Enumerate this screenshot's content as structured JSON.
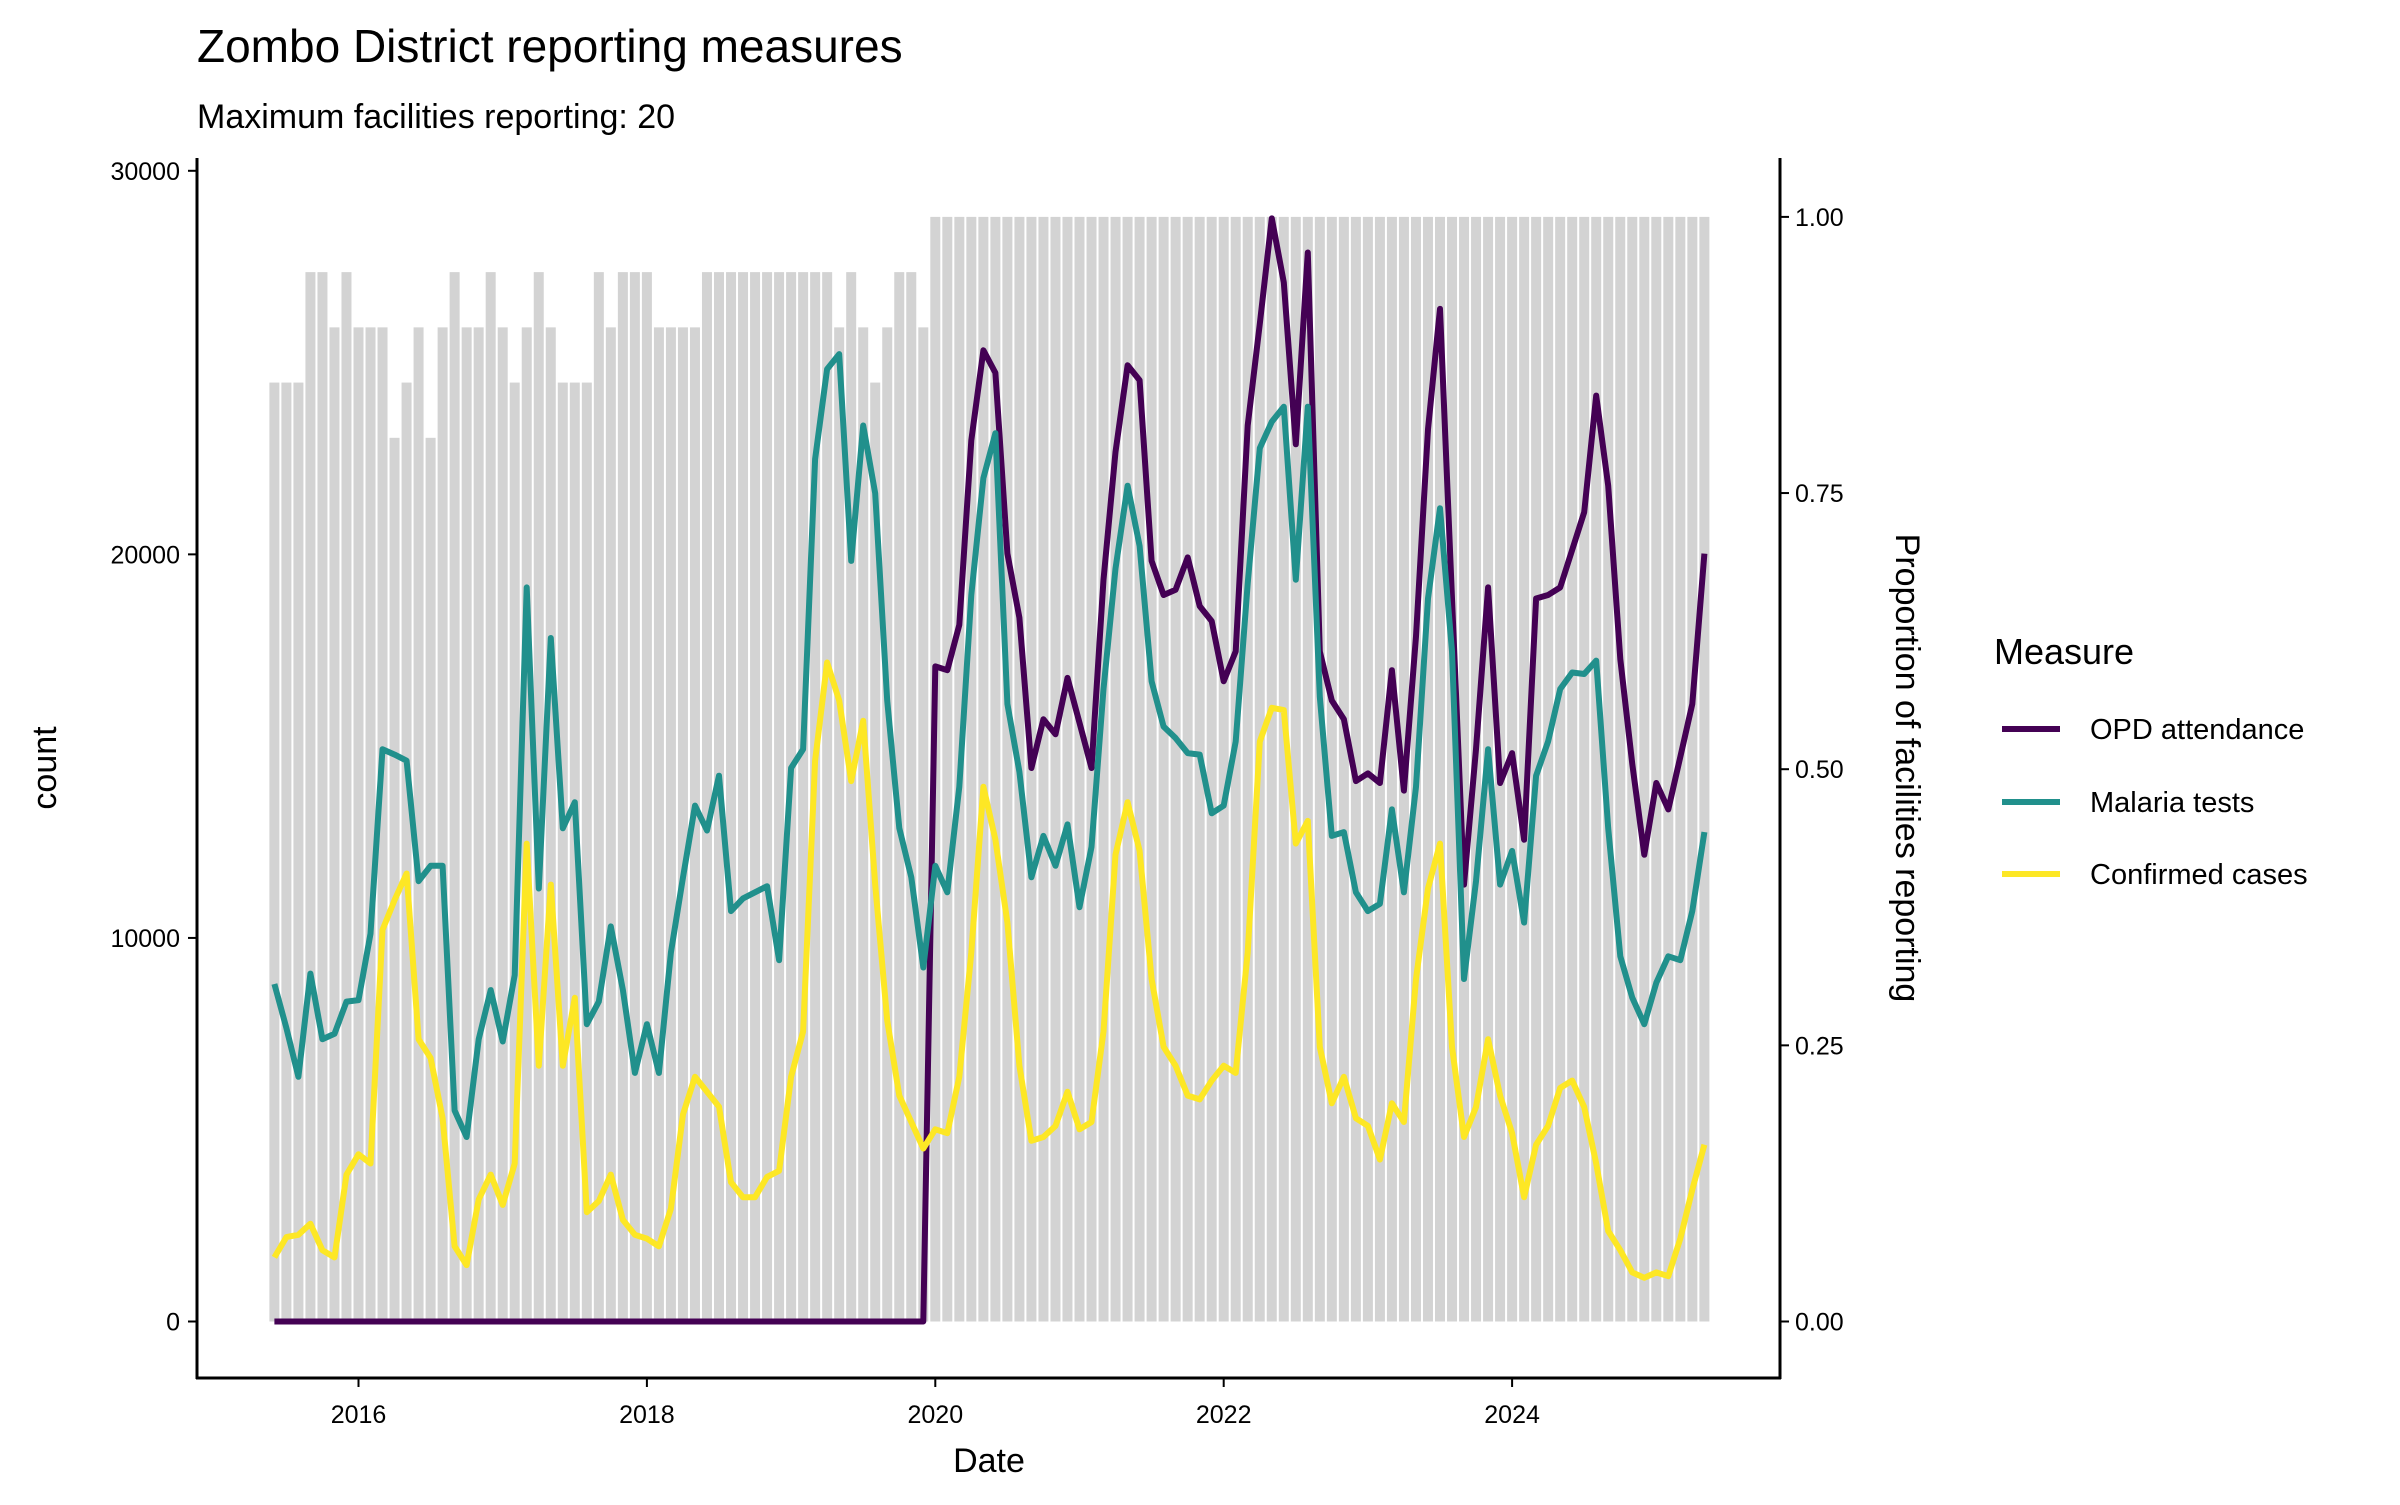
{
  "chart_data": {
    "type": "bar+line",
    "title": "Zombo District reporting measures",
    "subtitle": "Maximum facilities reporting: 20",
    "xlabel": "Date",
    "ylabel": "count",
    "ylabel_right": "Proportion of facilities reporting",
    "x_ticks": [
      "2016",
      "2018",
      "2020",
      "2022",
      "2024"
    ],
    "y_ticks": [
      "0",
      "10000",
      "20000",
      "30000"
    ],
    "y_right_ticks": [
      "0.00",
      "0.25",
      "0.50",
      "0.75",
      "1.00"
    ],
    "ylim": [
      0,
      30000
    ],
    "ylim_right": [
      0,
      1
    ],
    "grid": false,
    "legend": {
      "title": "Measure",
      "position": "right"
    },
    "dates": [
      "2015-06",
      "2015-07",
      "2015-08",
      "2015-09",
      "2015-10",
      "2015-11",
      "2015-12",
      "2016-01",
      "2016-02",
      "2016-03",
      "2016-04",
      "2016-05",
      "2016-06",
      "2016-07",
      "2016-08",
      "2016-09",
      "2016-10",
      "2016-11",
      "2016-12",
      "2017-01",
      "2017-02",
      "2017-03",
      "2017-04",
      "2017-05",
      "2017-06",
      "2017-07",
      "2017-08",
      "2017-09",
      "2017-10",
      "2017-11",
      "2017-12",
      "2018-01",
      "2018-02",
      "2018-03",
      "2018-04",
      "2018-05",
      "2018-06",
      "2018-07",
      "2018-08",
      "2018-09",
      "2018-10",
      "2018-11",
      "2018-12",
      "2019-01",
      "2019-02",
      "2019-03",
      "2019-04",
      "2019-05",
      "2019-06",
      "2019-07",
      "2019-08",
      "2019-09",
      "2019-10",
      "2019-11",
      "2019-12",
      "2020-01",
      "2020-02",
      "2020-03",
      "2020-04",
      "2020-05",
      "2020-06",
      "2020-07",
      "2020-08",
      "2020-09",
      "2020-10",
      "2020-11",
      "2020-12",
      "2021-01",
      "2021-02",
      "2021-03",
      "2021-04",
      "2021-05",
      "2021-06",
      "2021-07",
      "2021-08",
      "2021-09",
      "2021-10",
      "2021-11",
      "2021-12",
      "2022-01",
      "2022-02",
      "2022-03",
      "2022-04",
      "2022-05",
      "2022-06",
      "2022-07",
      "2022-08",
      "2022-09",
      "2022-10",
      "2022-11",
      "2022-12",
      "2023-01",
      "2023-02",
      "2023-03",
      "2023-04",
      "2023-05",
      "2023-06",
      "2023-07",
      "2023-08",
      "2023-09",
      "2023-10",
      "2023-11",
      "2023-12",
      "2024-01",
      "2024-02",
      "2024-03",
      "2024-04",
      "2024-05",
      "2024-06",
      "2024-07",
      "2024-08",
      "2024-09",
      "2024-10",
      "2024-11",
      "2024-12",
      "2025-01",
      "2025-02",
      "2025-03",
      "2025-04",
      "2025-05"
    ],
    "reporting_proportion": [
      0.85,
      0.85,
      0.85,
      0.95,
      0.95,
      0.9,
      0.95,
      0.9,
      0.9,
      0.9,
      0.8,
      0.85,
      0.9,
      0.8,
      0.9,
      0.95,
      0.9,
      0.9,
      0.95,
      0.9,
      0.85,
      0.9,
      0.95,
      0.9,
      0.85,
      0.85,
      0.85,
      0.95,
      0.9,
      0.95,
      0.95,
      0.95,
      0.9,
      0.9,
      0.9,
      0.9,
      0.95,
      0.95,
      0.95,
      0.95,
      0.95,
      0.95,
      0.95,
      0.95,
      0.95,
      0.95,
      0.95,
      0.9,
      0.95,
      0.9,
      0.85,
      0.9,
      0.95,
      0.95,
      0.9,
      1,
      1,
      1,
      1,
      1,
      1,
      1,
      1,
      1,
      1,
      1,
      1,
      1,
      1,
      1,
      1,
      1,
      1,
      1,
      1,
      1,
      1,
      1,
      1,
      1,
      1,
      1,
      1,
      1,
      1,
      1,
      1,
      1,
      1,
      1,
      1,
      1,
      1,
      1,
      1,
      1,
      1,
      1,
      1,
      1,
      1,
      1,
      1,
      1,
      1,
      1,
      1,
      1,
      1,
      1,
      1,
      1,
      1,
      1,
      1,
      1,
      1,
      1,
      1,
      1
    ],
    "bar_color": "#D3D3D3",
    "series": [
      {
        "name": "OPD attendance",
        "color": "#440154",
        "values": [
          0,
          0,
          0,
          0,
          0,
          0,
          0,
          0,
          0,
          0,
          0,
          0,
          0,
          0,
          0,
          0,
          0,
          0,
          0,
          0,
          0,
          0,
          0,
          0,
          0,
          0,
          0,
          0,
          0,
          0,
          0,
          0,
          0,
          0,
          0,
          0,
          0,
          0,
          0,
          0,
          0,
          0,
          0,
          0,
          0,
          0,
          0,
          0,
          0,
          0,
          0,
          0,
          0,
          0,
          0,
          17080,
          16980,
          18160,
          22970,
          25320,
          24730,
          20020,
          18350,
          14430,
          15700,
          15310,
          16780,
          15610,
          14430,
          19340,
          22670,
          24930,
          24540,
          19830,
          18940,
          19080,
          19920,
          18650,
          18260,
          16690,
          17470,
          23360,
          26010,
          28760,
          27090,
          22870,
          27870,
          17470,
          16190,
          15700,
          14090,
          14290,
          14040,
          16980,
          13840,
          17860,
          23260,
          26400,
          18850,
          11390,
          14920,
          19140,
          14040,
          14820,
          12560,
          18850,
          18940,
          19140,
          20120,
          21100,
          24140,
          21790,
          17270,
          14530,
          12170,
          14040,
          13350,
          14720,
          16100,
          20020
        ]
      },
      {
        "name": "Malaria tests",
        "color": "#21908C",
        "values": [
          8800,
          7650,
          6380,
          9070,
          7360,
          7500,
          8340,
          8380,
          10110,
          14920,
          14780,
          14620,
          11480,
          11880,
          11880,
          5500,
          4810,
          7360,
          8640,
          7300,
          9030,
          19140,
          11290,
          17820,
          12860,
          13540,
          7750,
          8340,
          10300,
          8640,
          6480,
          7750,
          6480,
          9620,
          11580,
          13450,
          12800,
          14230,
          10700,
          11030,
          11190,
          11350,
          9420,
          14430,
          14920,
          22480,
          24830,
          25220,
          19830,
          23360,
          21590,
          16190,
          12860,
          11580,
          9230,
          11880,
          11190,
          13940,
          18940,
          21990,
          23160,
          16100,
          14330,
          11580,
          12660,
          11880,
          12960,
          10800,
          12370,
          16490,
          19630,
          21790,
          20220,
          16690,
          15510,
          15210,
          14820,
          14780,
          13250,
          13450,
          15120,
          19240,
          22770,
          23460,
          23850,
          19340,
          23850,
          16290,
          12660,
          12760,
          11190,
          10700,
          10890,
          13350,
          11190,
          13940,
          18850,
          21200,
          17470,
          8930,
          11480,
          14920,
          11390,
          12270,
          10400,
          14230,
          15120,
          16490,
          16920,
          16880,
          17230,
          12860,
          9520,
          8440,
          7750,
          8830,
          9520,
          9420,
          10700,
          12760
        ]
      },
      {
        "name": "Confirmed cases",
        "color": "#FDE725",
        "values": [
          1670,
          2200,
          2260,
          2550,
          1860,
          1670,
          3830,
          4360,
          4120,
          10210,
          10990,
          11680,
          7360,
          6870,
          5300,
          1960,
          1470,
          3180,
          3830,
          3040,
          4120,
          12460,
          6670,
          11390,
          6670,
          8440,
          2850,
          3140,
          3830,
          2650,
          2260,
          2160,
          1960,
          2940,
          5400,
          6380,
          5990,
          5600,
          3630,
          3240,
          3240,
          3770,
          3930,
          6380,
          7560,
          14620,
          17180,
          16190,
          14090,
          15660,
          11390,
          7850,
          5890,
          5200,
          4510,
          5010,
          4910,
          6380,
          9620,
          13940,
          12560,
          10400,
          6670,
          4710,
          4810,
          5100,
          5990,
          5010,
          5200,
          7560,
          12170,
          13540,
          12270,
          8930,
          7160,
          6670,
          5890,
          5790,
          6280,
          6670,
          6480,
          9620,
          15120,
          16000,
          15940,
          12460,
          13050,
          7160,
          5690,
          6380,
          5300,
          5100,
          4220,
          5690,
          5200,
          8930,
          11290,
          12460,
          7160,
          4810,
          5590,
          7360,
          5890,
          4910,
          3240,
          4610,
          5100,
          6090,
          6280,
          5590,
          4120,
          2360,
          1860,
          1280,
          1140,
          1280,
          1180,
          2160,
          3440,
          4610
        ]
      }
    ]
  }
}
